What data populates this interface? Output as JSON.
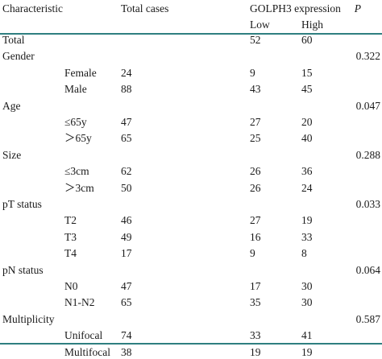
{
  "header": {
    "characteristic": "Characteristic",
    "total_cases": "Total cases",
    "golph3": "GOLPH3 expression",
    "p": "P",
    "low": "Low",
    "high": "High"
  },
  "total_row": {
    "label": "Total",
    "low": "52",
    "high": "60"
  },
  "groups": [
    {
      "label": "Gender",
      "p": "0.322",
      "rows": [
        {
          "label": "Female",
          "total": "24",
          "low": "9",
          "high": "15"
        },
        {
          "label": "Male",
          "total": "88",
          "low": "43",
          "high": "45"
        }
      ]
    },
    {
      "label": "Age",
      "p": "0.047",
      "rows": [
        {
          "label": "≤65y",
          "total": "47",
          "low": "27",
          "high": "20"
        },
        {
          "label": "＞65y",
          "total": "65",
          "low": "25",
          "high": "40"
        }
      ]
    },
    {
      "label": "Size",
      "p": "0.288",
      "rows": [
        {
          "label": "≤3cm",
          "total": "62",
          "low": "26",
          "high": "36"
        },
        {
          "label": "＞3cm",
          "total": "50",
          "low": "26",
          "high": "24"
        }
      ]
    },
    {
      "label": "pT status",
      "p": "0.033",
      "rows": [
        {
          "label": "T2",
          "total": "46",
          "low": "27",
          "high": "19"
        },
        {
          "label": "T3",
          "total": "49",
          "low": "16",
          "high": "33"
        },
        {
          "label": "T4",
          "total": "17",
          "low": "9",
          "high": "8"
        }
      ]
    },
    {
      "label": "pN status",
      "p": "0.064",
      "rows": [
        {
          "label": "N0",
          "total": "47",
          "low": "17",
          "high": "30"
        },
        {
          "label": "N1-N2",
          "total": "65",
          "low": "35",
          "high": "30"
        }
      ]
    },
    {
      "label": "Multiplicity",
      "p": "0.587",
      "rows": [
        {
          "label": "Unifocal",
          "total": "74",
          "low": "33",
          "high": "41"
        },
        {
          "label": "Multifocal",
          "total": "38",
          "low": "19",
          "high": "19"
        }
      ]
    }
  ],
  "colors": {
    "rule": "#2f7f80",
    "text": "#1a1a1a"
  }
}
